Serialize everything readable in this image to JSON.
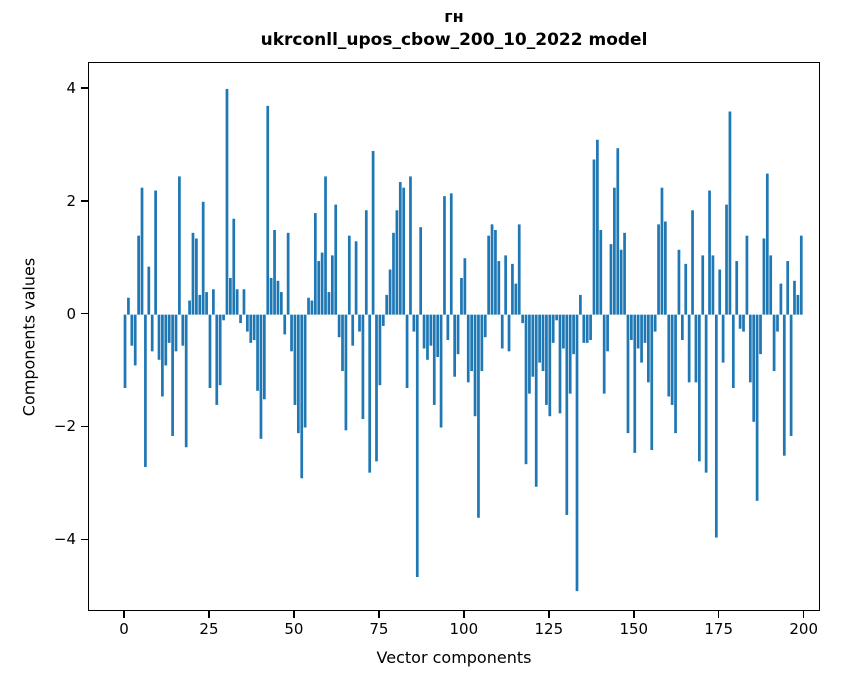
{
  "figure": {
    "suptitle": "гн",
    "title": "ukrconll_upos_cbow_200_10_2022 model"
  },
  "chart_data": {
    "type": "bar",
    "suptitle": "гн",
    "title": "ukrconll_upos_cbow_200_10_2022 model",
    "xlabel": "Vector components",
    "ylabel": "Components values",
    "bar_color": "#1f77b4",
    "axis_color": "#000000",
    "background_color": "#ffffff",
    "grid": false,
    "legend": "none",
    "n_components": 200,
    "x_start": 0,
    "x_step": 1,
    "bar_width_units": 0.8,
    "x_ticks": [
      0,
      25,
      50,
      75,
      100,
      125,
      150,
      175,
      200
    ],
    "y_ticks": [
      4,
      2,
      0,
      -2,
      -4
    ],
    "xlim": [
      -10.6,
      204.8
    ],
    "ylim": [
      -5.27,
      4.46
    ],
    "values": [
      -1.3,
      0.3,
      -0.55,
      -0.9,
      1.4,
      2.25,
      -2.7,
      0.85,
      -0.65,
      2.2,
      -0.8,
      -1.45,
      -0.9,
      -0.5,
      -2.15,
      -0.65,
      2.45,
      -0.55,
      -2.35,
      0.25,
      1.45,
      1.35,
      0.35,
      2.0,
      0.4,
      -1.3,
      0.45,
      -1.6,
      -1.25,
      -0.1,
      4.0,
      0.65,
      1.7,
      0.45,
      -0.15,
      0.45,
      -0.3,
      -0.5,
      -0.45,
      -1.35,
      -2.2,
      -1.5,
      3.7,
      0.65,
      1.5,
      0.6,
      0.4,
      -0.35,
      1.45,
      -0.65,
      -1.6,
      -2.1,
      -2.9,
      -2.0,
      0.3,
      0.25,
      1.8,
      0.95,
      1.1,
      2.45,
      0.4,
      1.05,
      1.95,
      -0.4,
      -1.0,
      -2.05,
      1.4,
      -0.55,
      1.3,
      -0.3,
      -1.85,
      1.85,
      -2.8,
      2.9,
      -2.6,
      -1.25,
      -0.2,
      0.35,
      0.8,
      1.45,
      1.85,
      2.35,
      2.25,
      -1.3,
      2.45,
      -0.3,
      -4.65,
      1.55,
      -0.6,
      -0.8,
      -0.55,
      -1.6,
      -0.75,
      -2.0,
      2.1,
      -0.45,
      2.15,
      -1.1,
      -0.7,
      0.65,
      1.0,
      -1.2,
      -1.0,
      -1.8,
      -3.6,
      -1.0,
      -0.4,
      1.4,
      1.6,
      1.5,
      0.95,
      -0.6,
      1.05,
      -0.65,
      0.9,
      0.55,
      1.6,
      -0.15,
      -2.65,
      -1.4,
      -1.1,
      -3.05,
      -0.85,
      -1.0,
      -1.6,
      -1.8,
      -0.5,
      -0.1,
      -1.75,
      -0.6,
      -3.55,
      -1.4,
      -0.7,
      -4.9,
      0.35,
      -0.5,
      -0.5,
      -0.45,
      2.75,
      3.1,
      1.5,
      -1.4,
      -0.65,
      1.25,
      2.25,
      2.95,
      1.15,
      1.45,
      -2.1,
      -0.45,
      -2.45,
      -0.6,
      -0.85,
      -0.5,
      -1.2,
      -2.4,
      -0.3,
      1.6,
      2.25,
      1.65,
      -1.45,
      -1.6,
      -2.1,
      1.15,
      -0.45,
      0.9,
      -1.2,
      1.85,
      -1.2,
      -2.6,
      1.05,
      -2.8,
      2.2,
      1.05,
      -3.95,
      0.8,
      -0.85,
      1.95,
      3.6,
      -1.3,
      0.95,
      -0.25,
      -0.3,
      1.4,
      -1.2,
      -1.9,
      -3.3,
      -0.7,
      1.35,
      2.5,
      1.05,
      -1.0,
      -0.3,
      0.55,
      -2.5,
      0.95,
      -2.15,
      0.6,
      0.35,
      1.4
    ]
  }
}
